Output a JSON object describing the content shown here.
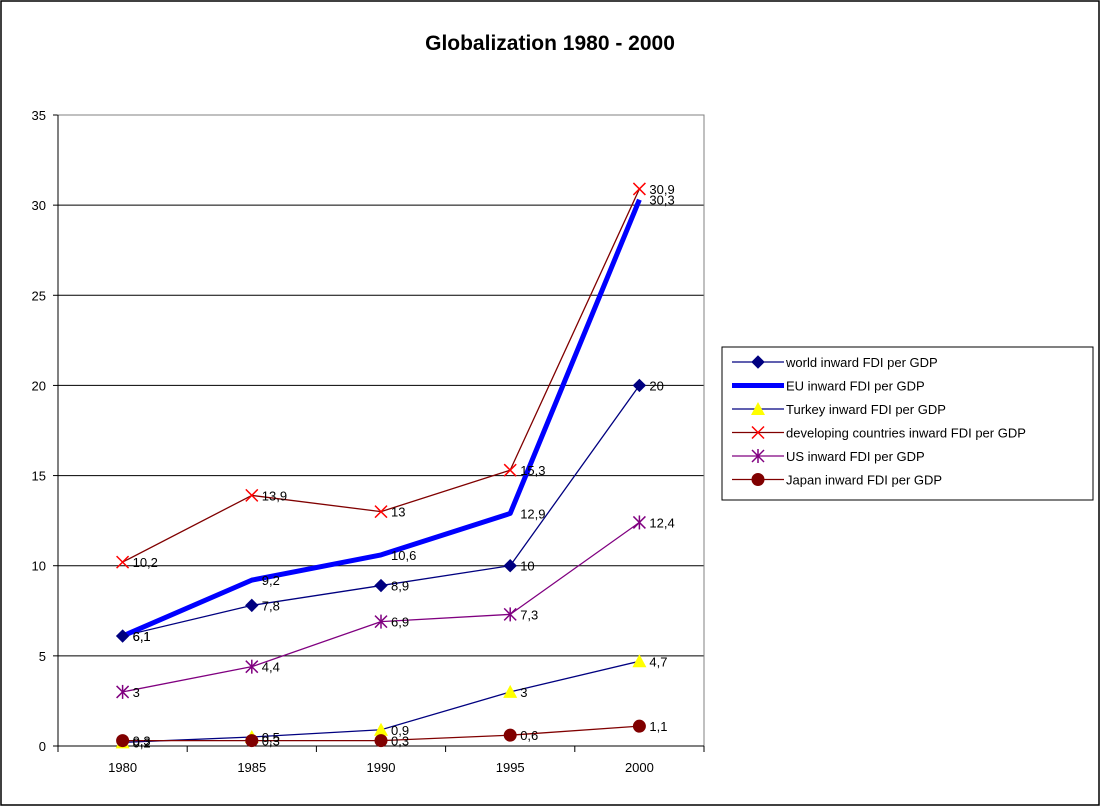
{
  "chart_data": {
    "type": "line",
    "title": "Globalization 1980 - 2000",
    "xlabel": "",
    "ylabel": "",
    "categories": [
      "1980",
      "1985",
      "1990",
      "1995",
      "2000"
    ],
    "ylim": [
      0,
      35
    ],
    "yticks": [
      0,
      5,
      10,
      15,
      20,
      25,
      30,
      35
    ],
    "grid": true,
    "legend_position": "right",
    "series": [
      {
        "name": "world inward FDI per GDP",
        "values": [
          6.1,
          7.8,
          8.9,
          10,
          20
        ],
        "labels": [
          "6,1",
          "7,8",
          "8,9",
          "10",
          "20"
        ],
        "color": "#000080",
        "marker": "diamond",
        "marker_color": "#000080",
        "line_width": 1.3
      },
      {
        "name": "EU inward FDI per GDP",
        "values": [
          6.1,
          9.2,
          10.6,
          12.9,
          30.3
        ],
        "labels": [
          "6,1",
          "9,2",
          "10,6",
          "12,9",
          "30,3"
        ],
        "color": "#0000ff",
        "marker": "none",
        "marker_color": "#0000ff",
        "line_width": 5
      },
      {
        "name": "Turkey inward FDI per GDP",
        "values": [
          0.2,
          0.5,
          0.9,
          3,
          4.7
        ],
        "labels": [
          "0,2",
          "0,5",
          "0,9",
          "3",
          "4,7"
        ],
        "color": "#000080",
        "marker": "triangle",
        "marker_color": "#ffff00",
        "line_width": 1.3
      },
      {
        "name": "developing countries inward FDI per GDP",
        "values": [
          10.2,
          13.9,
          13,
          15.3,
          30.9
        ],
        "labels": [
          "10,2",
          "13,9",
          "13",
          "15,3",
          "30,9"
        ],
        "color": "#800000",
        "marker": "x",
        "marker_color": "#ff0000",
        "line_width": 1.3
      },
      {
        "name": "US inward FDI per GDP",
        "values": [
          3,
          4.4,
          6.9,
          7.3,
          12.4
        ],
        "labels": [
          "3",
          "4,4",
          "6,9",
          "7,3",
          "12,4"
        ],
        "color": "#800080",
        "marker": "star",
        "marker_color": "#800080",
        "line_width": 1.3
      },
      {
        "name": "Japan inward FDI per GDP",
        "values": [
          0.3,
          0.3,
          0.3,
          0.6,
          1.1
        ],
        "labels": [
          "0,3",
          "0,3",
          "0,3",
          "0,6",
          "1,1"
        ],
        "color": "#800000",
        "marker": "circle",
        "marker_color": "#800000",
        "line_width": 1.3
      }
    ]
  }
}
